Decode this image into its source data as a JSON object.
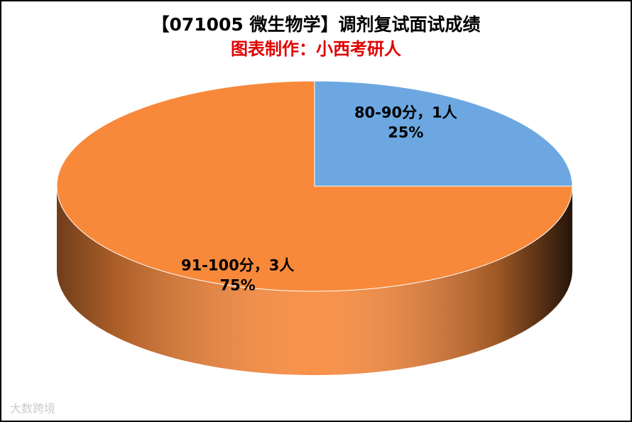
{
  "chart_data": {
    "type": "pie3d",
    "title": "【071005 微生物学】调剂复试面试成绩",
    "subtitle": "图表制作：小西考研人",
    "categories": [
      "80-90分，1人",
      "91-100分，3人"
    ],
    "values": [
      25,
      75
    ],
    "value_labels": [
      "25%",
      "75%"
    ],
    "colors": [
      "#6ca7e1",
      "#f8893b"
    ],
    "watermark": "大数跨境"
  }
}
